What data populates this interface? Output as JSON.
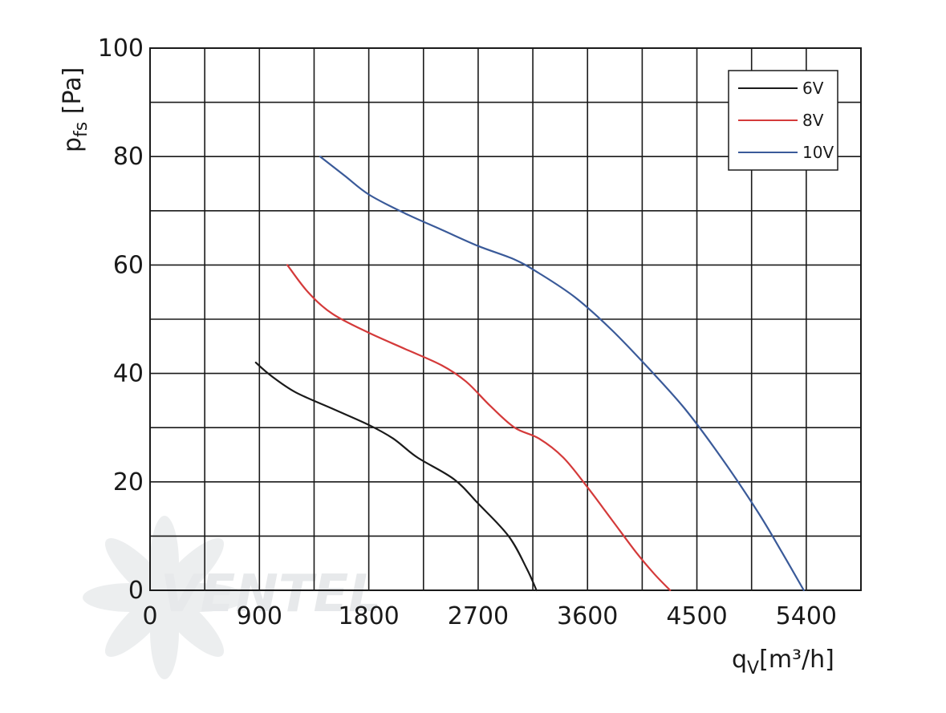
{
  "chart_data": {
    "type": "line",
    "xlabel": {
      "main": "q",
      "sub": "V",
      "unit": "[m³/h]"
    },
    "ylabel": {
      "main": "p",
      "sub": "fs",
      "unit": "[Pa]"
    },
    "xlim": [
      0,
      5850
    ],
    "ylim": [
      0,
      100
    ],
    "x_ticks": [
      0,
      900,
      1800,
      2700,
      3600,
      4500,
      5400
    ],
    "y_ticks": [
      0,
      20,
      40,
      60,
      80,
      100
    ],
    "grid": true,
    "legend_position": "top-right",
    "series": [
      {
        "name": "6V",
        "color": "#1a1a1a",
        "points": [
          [
            870,
            42
          ],
          [
            1000,
            39.5
          ],
          [
            1200,
            36.5
          ],
          [
            1500,
            33.5
          ],
          [
            1800,
            30.5
          ],
          [
            2000,
            28
          ],
          [
            2200,
            24.5
          ],
          [
            2500,
            20.5
          ],
          [
            2700,
            16
          ],
          [
            2950,
            10
          ],
          [
            3100,
            4
          ],
          [
            3180,
            0
          ]
        ]
      },
      {
        "name": "8V",
        "color": "#d43a3a",
        "points": [
          [
            1130,
            60
          ],
          [
            1300,
            55
          ],
          [
            1500,
            51
          ],
          [
            1800,
            47.5
          ],
          [
            2100,
            44.5
          ],
          [
            2400,
            41.5
          ],
          [
            2600,
            38.5
          ],
          [
            2800,
            34
          ],
          [
            3000,
            30
          ],
          [
            3200,
            28
          ],
          [
            3400,
            24.5
          ],
          [
            3600,
            19
          ],
          [
            3800,
            13
          ],
          [
            4000,
            7
          ],
          [
            4150,
            3
          ],
          [
            4280,
            0
          ]
        ]
      },
      {
        "name": "10V",
        "color": "#3a5a99",
        "points": [
          [
            1400,
            80
          ],
          [
            1600,
            76.5
          ],
          [
            1800,
            73
          ],
          [
            2100,
            69.5
          ],
          [
            2400,
            66.5
          ],
          [
            2700,
            63.5
          ],
          [
            3000,
            61
          ],
          [
            3200,
            58.5
          ],
          [
            3500,
            54
          ],
          [
            3800,
            48
          ],
          [
            4100,
            41
          ],
          [
            4400,
            33.5
          ],
          [
            4700,
            24.5
          ],
          [
            5000,
            14.5
          ],
          [
            5200,
            7
          ],
          [
            5380,
            0
          ]
        ]
      }
    ],
    "watermark": "VENTEL"
  }
}
